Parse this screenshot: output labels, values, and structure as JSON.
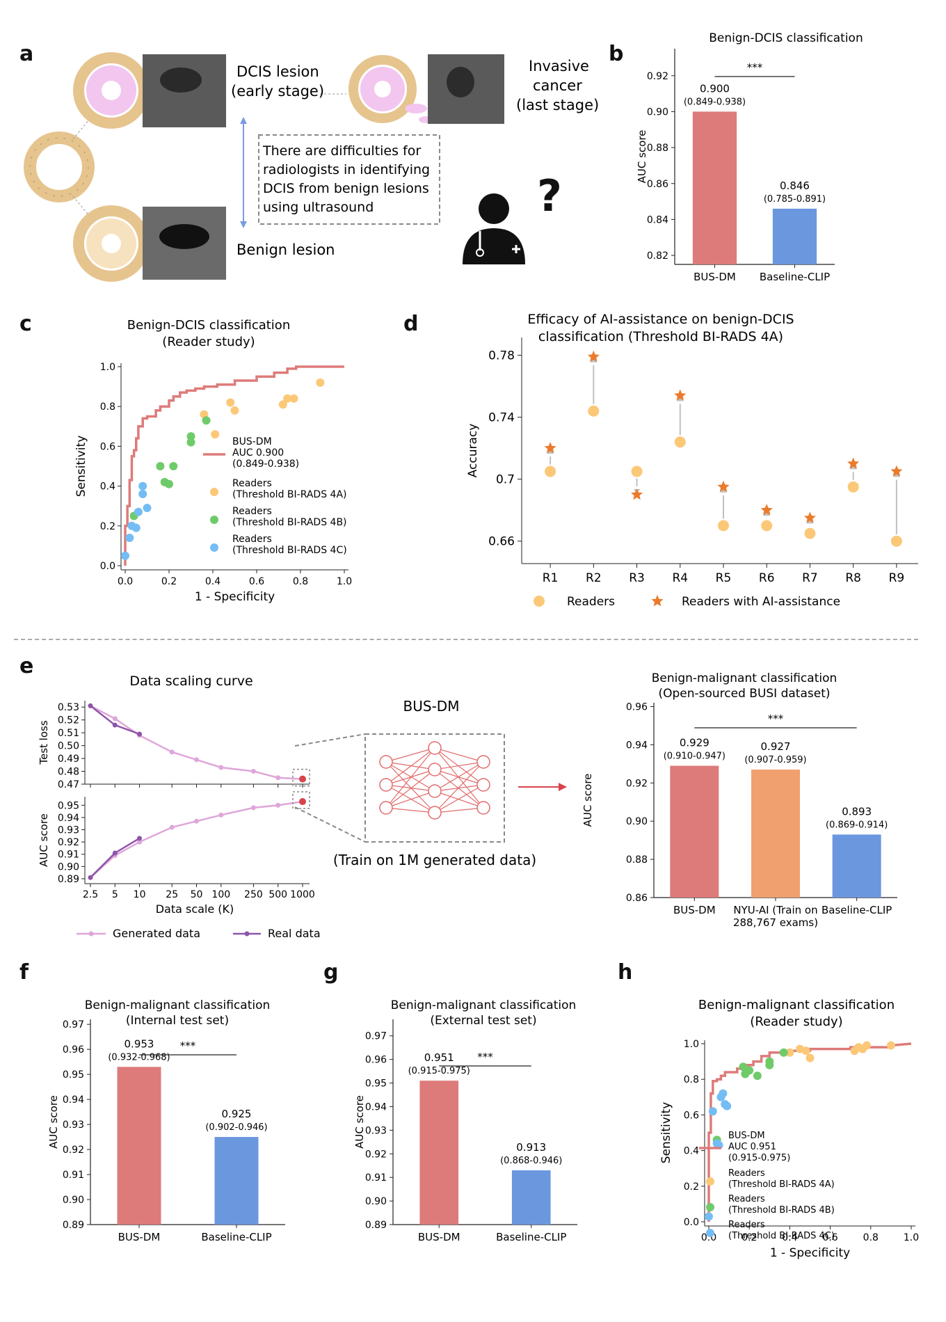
{
  "panels": {
    "a": "a",
    "b": "b",
    "c": "c",
    "d": "d",
    "e": "e",
    "f": "f",
    "g": "g",
    "h": "h"
  },
  "panel_a": {
    "dcis_label_1": "DCIS lesion",
    "dcis_label_2": "(early stage)",
    "invasive_label_1": "Invasive",
    "invasive_label_2": "cancer",
    "invasive_label_3": "(last stage)",
    "difficulty_1": "There are difficulties for",
    "difficulty_2": "radiologists in identifying",
    "difficulty_3": "DCIS from benign lesions",
    "difficulty_4": "using ultrasound",
    "benign_label": "Benign lesion",
    "question": "?"
  },
  "panel_e_middle": {
    "model": "BUS-DM",
    "train_note": "(Train on 1M generated data)"
  },
  "colors": {
    "red": "#dd7b7a",
    "blue": "#6b97de",
    "orange": "#f0a06e",
    "readers_4a": "#fbc878",
    "readers_4b": "#6fcb6a",
    "readers_4c": "#74bdf4",
    "purple_light": "#dfa6d9",
    "purple_dark": "#8e55ab",
    "star": "#ea7b2c",
    "gray": "#c0c0c0"
  },
  "chart_data": [
    {
      "id": "b",
      "type": "bar",
      "title": "Benign-DCIS classification",
      "ylabel": "AUC score",
      "ylim": [
        0.815,
        0.935
      ],
      "yticks": [
        0.82,
        0.84,
        0.86,
        0.88,
        0.9,
        0.92
      ],
      "categories": [
        "BUS-DM",
        "Baseline-CLIP"
      ],
      "values": [
        0.9,
        0.846
      ],
      "value_labels": [
        "0.900",
        "0.846"
      ],
      "ci_labels": [
        "(0.849-0.938)",
        "(0.785-0.891)"
      ],
      "significance": "***"
    },
    {
      "id": "c",
      "type": "scatter",
      "title_1": "Benign-DCIS classification",
      "title_2": "(Reader study)",
      "xlabel": "1 - Specificity",
      "ylabel": "Sensitivity",
      "xlim": [
        0,
        1
      ],
      "ylim": [
        0,
        1
      ],
      "xticks": [
        0.0,
        0.2,
        0.4,
        0.6,
        0.8,
        1.0
      ],
      "yticks": [
        0.0,
        0.2,
        0.4,
        0.6,
        0.8,
        1.0
      ],
      "roc": {
        "name": "BUS-DM",
        "auc_label": "AUC 0.900",
        "ci": "(0.849-0.938)",
        "x": [
          0,
          0,
          0.01,
          0.01,
          0.02,
          0.02,
          0.03,
          0.03,
          0.04,
          0.04,
          0.05,
          0.05,
          0.06,
          0.06,
          0.08,
          0.08,
          0.1,
          0.1,
          0.14,
          0.14,
          0.16,
          0.16,
          0.2,
          0.2,
          0.22,
          0.22,
          0.25,
          0.25,
          0.28,
          0.28,
          0.32,
          0.32,
          0.36,
          0.36,
          0.42,
          0.42,
          0.5,
          0.5,
          0.6,
          0.6,
          0.68,
          0.68,
          0.74,
          0.74,
          0.78,
          0.78,
          1.0
        ],
        "y": [
          0,
          0.2,
          0.2,
          0.3,
          0.3,
          0.43,
          0.43,
          0.55,
          0.55,
          0.58,
          0.58,
          0.64,
          0.64,
          0.7,
          0.7,
          0.74,
          0.74,
          0.75,
          0.75,
          0.78,
          0.78,
          0.8,
          0.8,
          0.83,
          0.83,
          0.85,
          0.85,
          0.87,
          0.87,
          0.88,
          0.88,
          0.89,
          0.89,
          0.9,
          0.9,
          0.91,
          0.91,
          0.93,
          0.93,
          0.95,
          0.95,
          0.97,
          0.97,
          0.99,
          0.99,
          1.0,
          1.0
        ]
      },
      "readers": [
        {
          "name_1": "Readers",
          "name_2": "(Threshold BI-RADS 4A)",
          "color": "#fbc878",
          "x": [
            0.36,
            0.41,
            0.48,
            0.5,
            0.72,
            0.74,
            0.77,
            0.89
          ],
          "y": [
            0.76,
            0.66,
            0.82,
            0.78,
            0.81,
            0.84,
            0.84,
            0.92
          ]
        },
        {
          "name_1": "Readers",
          "name_2": "(Threshold BI-RADS 4B)",
          "color": "#6fcb6a",
          "x": [
            0.04,
            0.16,
            0.18,
            0.2,
            0.22,
            0.3,
            0.3,
            0.37
          ],
          "y": [
            0.25,
            0.5,
            0.42,
            0.41,
            0.5,
            0.65,
            0.62,
            0.73
          ]
        },
        {
          "name_1": "Readers",
          "name_2": "(Threshold BI-RADS 4C)",
          "color": "#74bdf4",
          "x": [
            0.0,
            0.02,
            0.03,
            0.05,
            0.06,
            0.08,
            0.08,
            0.1
          ],
          "y": [
            0.05,
            0.14,
            0.2,
            0.19,
            0.27,
            0.4,
            0.36,
            0.29
          ]
        }
      ]
    },
    {
      "id": "d",
      "type": "scatter",
      "title_1": "Efficacy of AI-assistance on benign-DCIS",
      "title_2": "classification (Threshold BI-RADS 4A)",
      "ylabel": "Accuracy",
      "ylim": [
        0.65,
        0.787
      ],
      "yticks": [
        0.66,
        0.7,
        0.74,
        0.78
      ],
      "ytick_labels": [
        "0.66",
        "0.7",
        "0.74",
        "0.78"
      ],
      "categories": [
        "R1",
        "R2",
        "R3",
        "R4",
        "R5",
        "R6",
        "R7",
        "R8",
        "R9"
      ],
      "series": [
        {
          "name": "Readers",
          "values": [
            0.705,
            0.744,
            0.705,
            0.724,
            0.67,
            0.67,
            0.665,
            0.695,
            0.66
          ]
        },
        {
          "name": "Readers with AI-assistance",
          "values": [
            0.72,
            0.779,
            0.69,
            0.754,
            0.695,
            0.68,
            0.675,
            0.71,
            0.705
          ]
        }
      ]
    },
    {
      "id": "e_loss",
      "type": "line",
      "title": "Data scaling curve",
      "ylabel": "Test loss",
      "ylim": [
        0.47,
        0.535
      ],
      "yticks": [
        0.47,
        0.48,
        0.49,
        0.5,
        0.51,
        0.52,
        0.53
      ],
      "ytick_labels": [
        "0.47",
        "0.48",
        "0.49",
        "0.50",
        "0.51",
        "0.52",
        "0.53"
      ],
      "xscale": "log",
      "series": [
        {
          "name": "Generated data",
          "x": [
            2.5,
            5,
            10,
            25,
            50,
            100,
            250,
            500,
            1000
          ],
          "values": [
            0.531,
            0.521,
            0.508,
            0.495,
            0.489,
            0.483,
            0.48,
            0.475,
            0.474
          ]
        },
        {
          "name": "Real data",
          "x": [
            2.5,
            5,
            10
          ],
          "values": [
            0.531,
            0.516,
            0.509
          ]
        }
      ]
    },
    {
      "id": "e_auc",
      "type": "line",
      "ylabel": "AUC score",
      "xlabel": "Data scale (K)",
      "ylim": [
        0.886,
        0.957
      ],
      "yticks": [
        0.89,
        0.9,
        0.91,
        0.92,
        0.93,
        0.94,
        0.95
      ],
      "ytick_labels": [
        "0.89",
        "0.90",
        "0.91",
        "0.92",
        "0.93",
        "0.94",
        "0.95"
      ],
      "xticks": [
        2.5,
        5,
        10,
        25,
        50,
        100,
        250,
        500,
        1000
      ],
      "xtick_labels": [
        "2.5",
        "5",
        "10",
        "25",
        "50",
        "100",
        "250",
        "500",
        "1000"
      ],
      "xscale": "log",
      "series": [
        {
          "name": "Generated data",
          "x": [
            2.5,
            5,
            10,
            25,
            50,
            100,
            250,
            500,
            1000
          ],
          "values": [
            0.891,
            0.909,
            0.92,
            0.932,
            0.937,
            0.942,
            0.948,
            0.95,
            0.953
          ]
        },
        {
          "name": "Real data",
          "x": [
            2.5,
            5,
            10
          ],
          "values": [
            0.891,
            0.911,
            0.923
          ]
        }
      ]
    },
    {
      "id": "e_bar",
      "type": "bar",
      "title_1": "Benign-malignant classification",
      "title_2": "(Open-sourced BUSI dataset)",
      "ylabel": "AUC score",
      "ylim": [
        0.86,
        0.962
      ],
      "yticks": [
        0.86,
        0.88,
        0.9,
        0.92,
        0.94,
        0.96
      ],
      "categories": [
        "BUS-DM",
        "NYU-AI (Train on",
        "Baseline-CLIP"
      ],
      "category_line2": [
        "",
        "288,767 exams)",
        ""
      ],
      "values": [
        0.929,
        0.927,
        0.893
      ],
      "value_labels": [
        "0.929",
        "0.927",
        "0.893"
      ],
      "ci_labels": [
        "(0.910-0.947)",
        "(0.907-0.959)",
        "(0.869-0.914)"
      ],
      "significance": "***"
    },
    {
      "id": "f",
      "type": "bar",
      "title_1": "Benign-malignant classification",
      "title_2": "(Internal test set)",
      "ylabel": "AUC score",
      "ylim": [
        0.89,
        0.972
      ],
      "yticks": [
        0.89,
        0.9,
        0.91,
        0.92,
        0.93,
        0.94,
        0.95,
        0.96,
        0.97
      ],
      "categories": [
        "BUS-DM",
        "Baseline-CLIP"
      ],
      "values": [
        0.953,
        0.925
      ],
      "value_labels": [
        "0.953",
        "0.925"
      ],
      "ci_labels": [
        "(0.932-0.968)",
        "(0.902-0.946)"
      ],
      "significance": "***"
    },
    {
      "id": "g",
      "type": "bar",
      "title_1": "Benign-malignant classification",
      "title_2": "(External test set)",
      "ylabel": "AUC score",
      "ylim": [
        0.89,
        0.977
      ],
      "yticks": [
        0.89,
        0.9,
        0.91,
        0.92,
        0.93,
        0.94,
        0.95,
        0.96,
        0.97
      ],
      "categories": [
        "BUS-DM",
        "Baseline-CLIP"
      ],
      "values": [
        0.951,
        0.913
      ],
      "value_labels": [
        "0.951",
        "0.913"
      ],
      "ci_labels": [
        "(0.915-0.975)",
        "(0.868-0.946)"
      ],
      "significance": "***"
    },
    {
      "id": "h",
      "type": "scatter",
      "title_1": "Benign-malignant classification",
      "title_2": "(Reader study)",
      "xlabel": "1 - Specificity",
      "ylabel": "Sensitivity",
      "xlim": [
        0,
        1
      ],
      "ylim": [
        0,
        1
      ],
      "xticks": [
        0.0,
        0.2,
        0.4,
        0.6,
        0.8,
        1.0
      ],
      "yticks": [
        0.0,
        0.2,
        0.4,
        0.6,
        0.8,
        1.0
      ],
      "roc": {
        "name": "BUS-DM",
        "auc_label": "AUC 0.951",
        "ci": "(0.915-0.975)",
        "x": [
          0,
          0,
          0.01,
          0.01,
          0.02,
          0.02,
          0.04,
          0.04,
          0.06,
          0.06,
          0.08,
          0.08,
          0.14,
          0.14,
          0.18,
          0.18,
          0.22,
          0.22,
          0.26,
          0.26,
          0.3,
          0.3,
          0.4,
          0.4,
          0.5,
          0.5,
          0.7,
          0.7,
          0.9,
          0.9,
          1.0
        ],
        "y": [
          0,
          0.5,
          0.5,
          0.72,
          0.72,
          0.79,
          0.79,
          0.8,
          0.8,
          0.82,
          0.82,
          0.84,
          0.84,
          0.86,
          0.86,
          0.88,
          0.88,
          0.9,
          0.9,
          0.93,
          0.93,
          0.95,
          0.95,
          0.96,
          0.96,
          0.97,
          0.97,
          0.98,
          0.98,
          0.99,
          1.0
        ]
      },
      "readers": [
        {
          "name_1": "Readers",
          "name_2": "(Threshold BI-RADS 4A)",
          "color": "#fbc878",
          "x": [
            0.4,
            0.45,
            0.48,
            0.5,
            0.72,
            0.74,
            0.76,
            0.78,
            0.9
          ],
          "y": [
            0.95,
            0.97,
            0.96,
            0.92,
            0.96,
            0.98,
            0.97,
            0.99,
            0.99
          ]
        },
        {
          "name_1": "Readers",
          "name_2": "(Threshold BI-RADS 4B)",
          "color": "#6fcb6a",
          "x": [
            0.04,
            0.17,
            0.18,
            0.2,
            0.24,
            0.3,
            0.3,
            0.37
          ],
          "y": [
            0.46,
            0.87,
            0.83,
            0.85,
            0.82,
            0.88,
            0.9,
            0.95
          ]
        },
        {
          "name_1": "Readers",
          "name_2": "(Threshold BI-RADS 4C)",
          "color": "#74bdf4",
          "x": [
            0.0,
            0.02,
            0.04,
            0.05,
            0.06,
            0.07,
            0.08,
            0.09
          ],
          "y": [
            0.03,
            0.62,
            0.44,
            0.43,
            0.7,
            0.72,
            0.66,
            0.65
          ]
        }
      ]
    }
  ]
}
